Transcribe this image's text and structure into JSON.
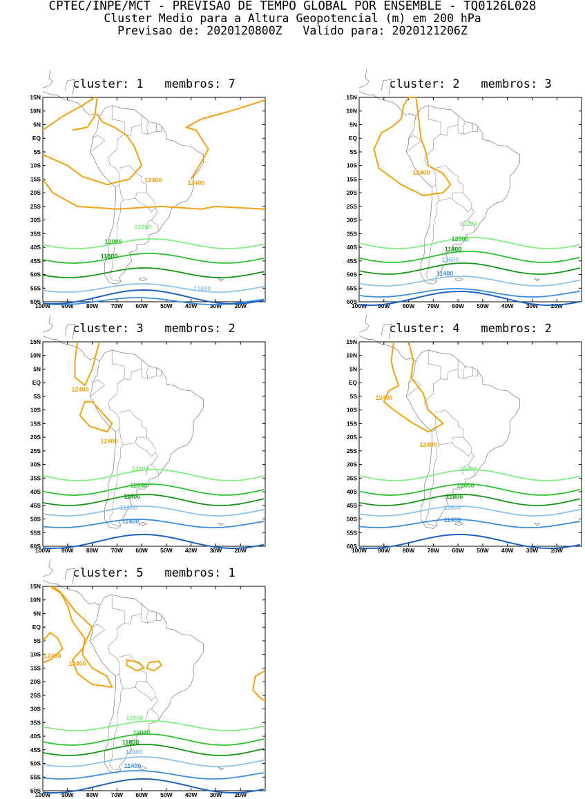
{
  "header": {
    "line1": "CPTEC/INPE/MCT - PREVISAO DE TEMPO GLOBAL POR ENSEMBLE - TQ0126L028",
    "line2": "Cluster Medio para a Altura Geopotencial (m) em 200 hPa",
    "line3": "Previsao de: 2020120800Z   Valido para: 2020121206Z"
  },
  "lat_ticks": [
    "15N",
    "10N",
    "5N",
    "EQ",
    "5S",
    "10S",
    "15S",
    "20S",
    "25S",
    "30S",
    "35S",
    "40S",
    "45S",
    "50S",
    "55S",
    "60S"
  ],
  "lon_ticks": [
    "100W",
    "90W",
    "80W",
    "70W",
    "60W",
    "50W",
    "40W",
    "30W",
    "20W"
  ],
  "colors": {
    "c12400": "#f5a00e",
    "c12200": "#82ee82",
    "c12000": "#2ac22a",
    "c11800": "#129512",
    "c11600": "#8ec2ee",
    "c11400": "#3d8ede",
    "c11200": "#1c62c2",
    "coast": "#888888"
  },
  "clusters": [
    {
      "title": "cluster: 1   membros: 7",
      "labels": [
        {
          "v": "12400"
        },
        {
          "v": "12400"
        },
        {
          "v": "12200"
        },
        {
          "v": "12000"
        },
        {
          "v": "11800"
        },
        {
          "v": "11600"
        }
      ]
    },
    {
      "title": "cluster: 2   membros: 3",
      "labels": [
        {
          "v": "12400"
        },
        {
          "v": "12200"
        },
        {
          "v": "12000"
        },
        {
          "v": "11800"
        },
        {
          "v": "11600"
        },
        {
          "v": "11400"
        }
      ]
    },
    {
      "title": "cluster: 3   membros: 2",
      "labels": [
        {
          "v": "12400"
        },
        {
          "v": "12400"
        },
        {
          "v": "12200"
        },
        {
          "v": "12000"
        },
        {
          "v": "11800"
        },
        {
          "v": "11600"
        },
        {
          "v": "11400"
        }
      ]
    },
    {
      "title": "cluster: 4   membros: 2",
      "labels": [
        {
          "v": "12400"
        },
        {
          "v": "12400"
        },
        {
          "v": "12200"
        },
        {
          "v": "12000"
        },
        {
          "v": "11800"
        },
        {
          "v": "11600"
        },
        {
          "v": "11400"
        }
      ]
    },
    {
      "title": "cluster: 5   membros: 1",
      "labels": [
        {
          "v": "12400"
        },
        {
          "v": "12400"
        },
        {
          "v": "12200"
        },
        {
          "v": "12000"
        },
        {
          "v": "11800"
        },
        {
          "v": "11600"
        },
        {
          "v": "11400"
        }
      ]
    }
  ]
}
